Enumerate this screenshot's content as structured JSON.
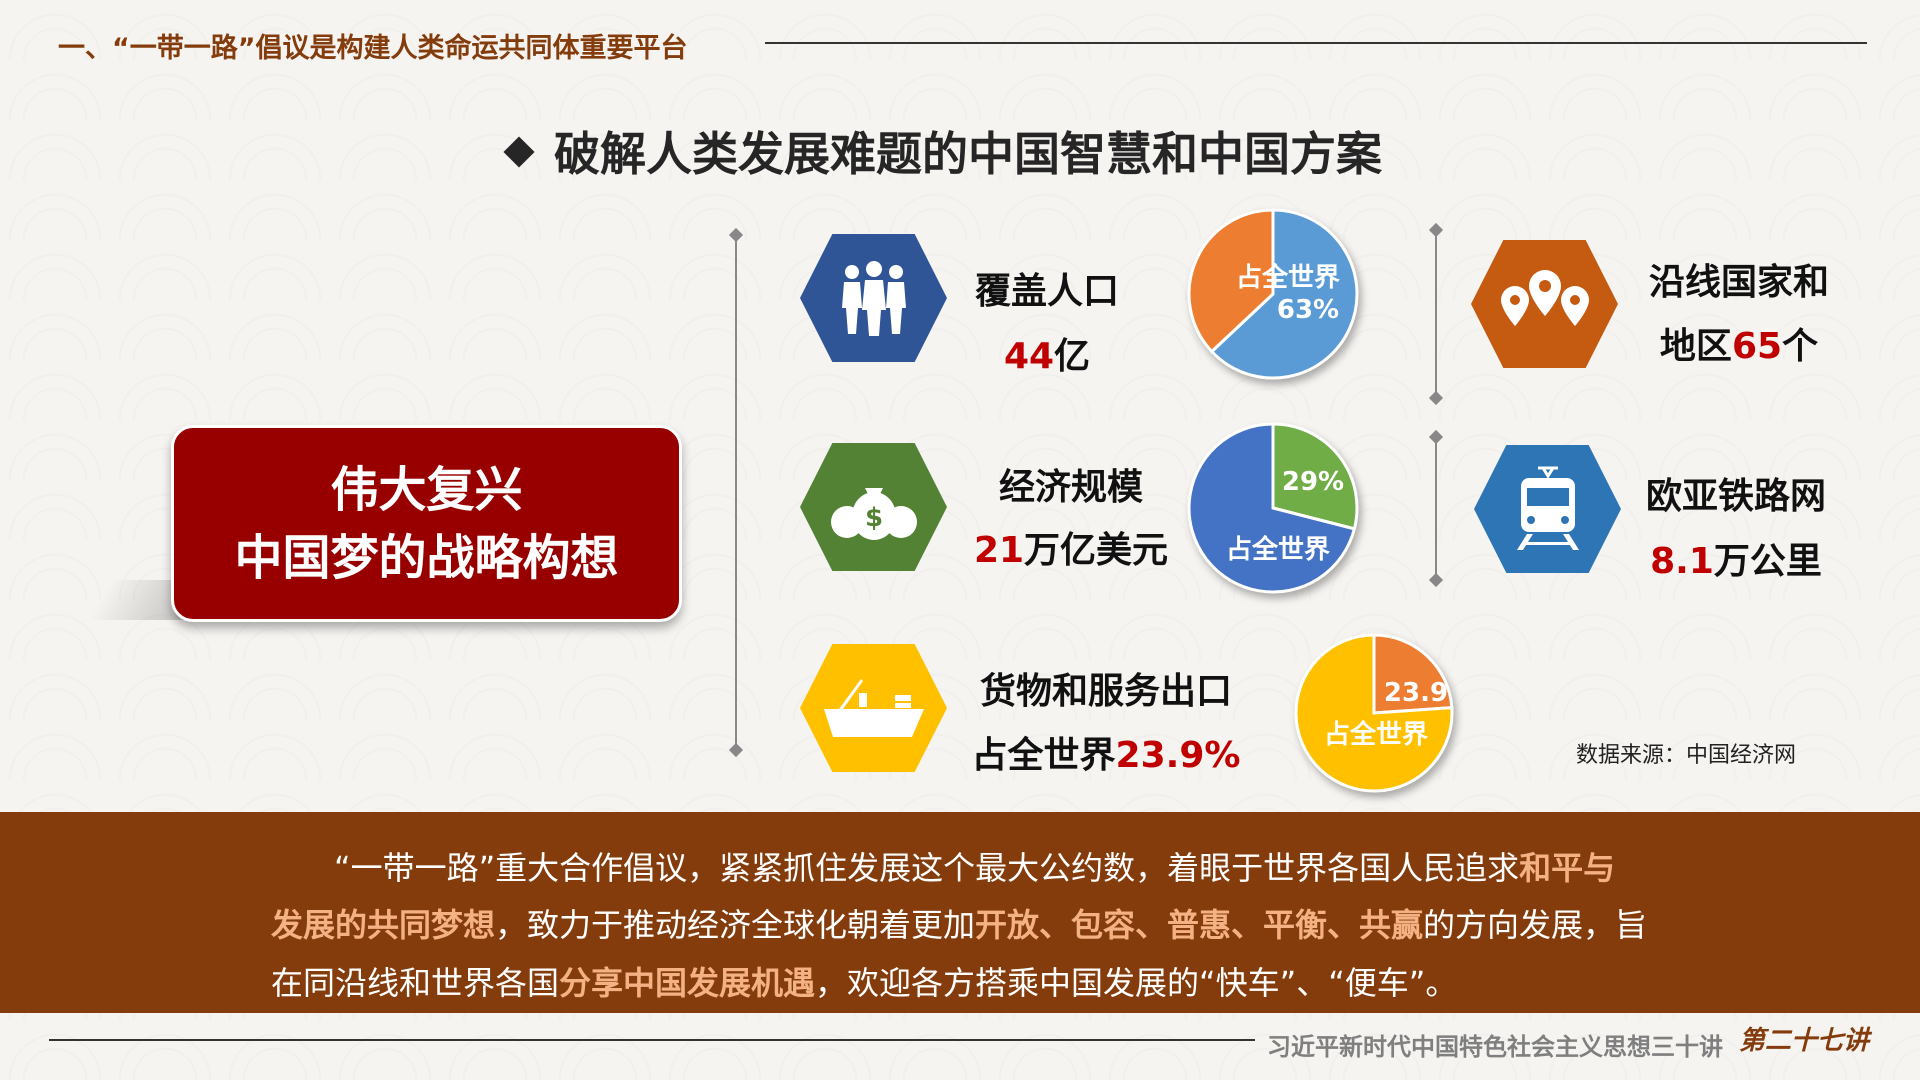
{
  "header": {
    "section_title": "一、“一带一路”倡议是构建人类命运共同体重要平台"
  },
  "main": {
    "title": "破解人类发展难题的中国智慧和中国方案",
    "center_box": {
      "line1": "伟大复兴",
      "line2": "中国梦的战略构想"
    },
    "stats": [
      {
        "icon": "people-icon",
        "color": "#2f5597",
        "label": "覆盖人口",
        "value": "44",
        "unit": "亿",
        "pie": {
          "label": "占全世界",
          "value_label": "63%",
          "share": 63,
          "share_color": "#5b9bd5",
          "rest_color": "#ed7d31"
        }
      },
      {
        "icon": "money-bags-icon",
        "color": "#548235",
        "label": "经济规模",
        "value": "21",
        "unit": "万亿美元",
        "pie": {
          "label": "占全世界",
          "value_label": "29%",
          "share": 29,
          "share_color": "#70ad47",
          "rest_color": "#4472c4"
        }
      },
      {
        "icon": "cargo-ship-icon",
        "color": "#ffc000",
        "label": "货物和服务出口",
        "prefix": "占全世界",
        "value": "23.9%",
        "pie": {
          "label": "占全世界",
          "value_label": "23.9",
          "share": 23.9,
          "share_color": "#ed7d31",
          "rest_color": "#ffc000"
        }
      },
      {
        "icon": "location-pins-icon",
        "color": "#c55a11",
        "label": "沿线国家和",
        "prefix": "地区",
        "value": "65",
        "unit": "个"
      },
      {
        "icon": "train-icon",
        "color": "#2e75b6",
        "label": "欧亚铁路网",
        "value": "8.1",
        "unit": "万公里"
      }
    ],
    "source": "数据来源：中国经济网"
  },
  "band": {
    "l1a": "“一带一路”重大合作倡议，紧紧抓住发展这个最大公约数，着眼于世界各国人民追求",
    "l1b": "和平与",
    "l2a": "发展的共同梦想",
    "l2b": "，致力于推动经济全球化朝着更加",
    "l2c": "开放、包容、普惠、平衡、共赢",
    "l2d": "的方向发展，旨",
    "l3a": "在同沿线和世界各国",
    "l3b": "分享中国发展机遇",
    "l3c": "，欢迎各方搭乘中国发展的“快车”、“便车”。"
  },
  "footer": {
    "series": "习近平新时代中国特色社会主义思想三十讲",
    "lecture": "第二十七讲"
  }
}
